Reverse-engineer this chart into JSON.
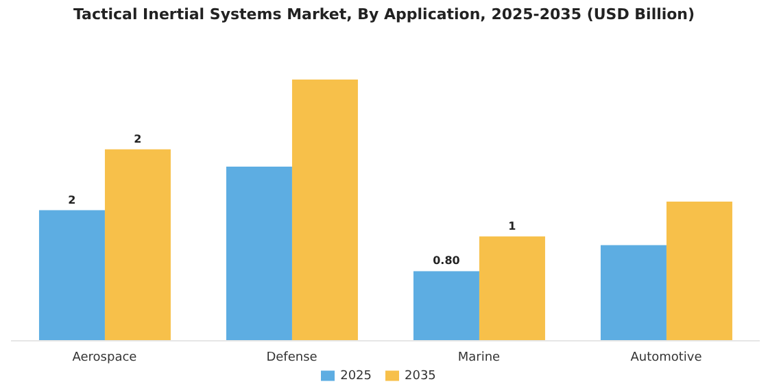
{
  "chart_data": {
    "type": "bar",
    "title": "Tactical Inertial Systems Market, By Application, 2025-2035 (USD Billion)",
    "categories": [
      "Aerospace",
      "Defense",
      "Marine",
      "Automotive"
    ],
    "series": [
      {
        "name": "2025",
        "color": "#5dade2",
        "values": [
          1.5,
          2.0,
          0.8,
          1.1
        ],
        "value_labels": [
          "2",
          null,
          "0.80",
          null
        ]
      },
      {
        "name": "2035",
        "color": "#f7c04a",
        "values": [
          2.2,
          3.0,
          1.2,
          1.6
        ],
        "value_labels": [
          "2",
          null,
          "1",
          null
        ]
      }
    ],
    "legend": "bottom",
    "grid": false
  }
}
